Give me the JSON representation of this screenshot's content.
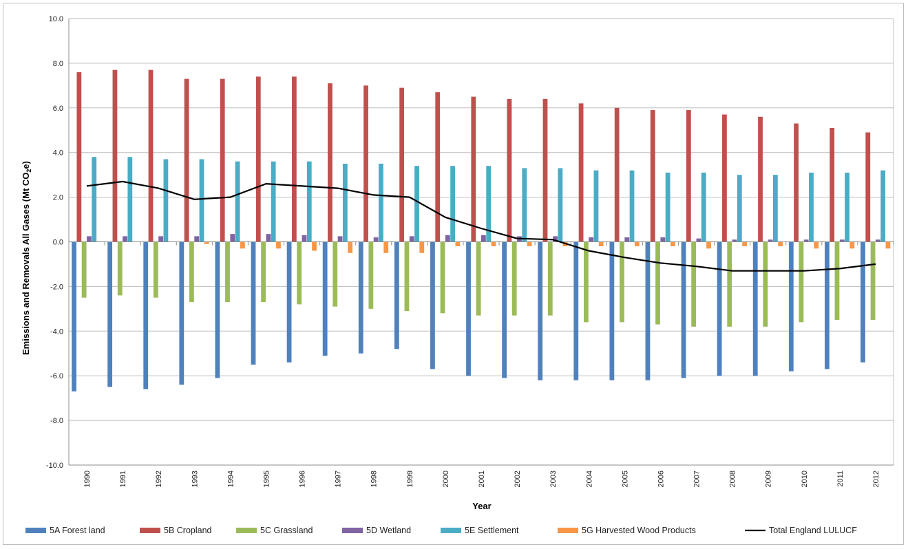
{
  "chart_data": {
    "type": "bar",
    "xlabel": "Year",
    "ylabel_main": "Emissions and Removals All Gases (Mt CO",
    "ylabel_sub": "2",
    "ylabel_end": "e)",
    "ylim": [
      -10,
      10
    ],
    "yticks": [
      "-10.0",
      "-8.0",
      "-6.0",
      "-4.0",
      "-2.0",
      "0.0",
      "2.0",
      "4.0",
      "6.0",
      "8.0",
      "10.0"
    ],
    "ytick_values": [
      -10,
      -8,
      -6,
      -4,
      -2,
      0,
      2,
      4,
      6,
      8,
      10
    ],
    "grid": true,
    "legend_position": "bottom",
    "categories": [
      "1990",
      "1991",
      "1992",
      "1993",
      "1994",
      "1995",
      "1996",
      "1997",
      "1998",
      "1999",
      "2000",
      "2001",
      "2002",
      "2003",
      "2004",
      "2005",
      "2006",
      "2007",
      "2008",
      "2009",
      "2010",
      "2011",
      "2012"
    ],
    "series": [
      {
        "name": "5A Forest land",
        "color": "#4F81BD",
        "kind": "bar",
        "values": [
          -6.7,
          -6.5,
          -6.6,
          -6.4,
          -6.1,
          -5.5,
          -5.4,
          -5.1,
          -5.0,
          -4.8,
          -5.7,
          -6.0,
          -6.1,
          -6.2,
          -6.2,
          -6.2,
          -6.2,
          -6.1,
          -6.0,
          -6.0,
          -5.8,
          -5.7,
          -5.4
        ]
      },
      {
        "name": "5B Cropland",
        "color": "#C0504D",
        "kind": "bar",
        "values": [
          7.6,
          7.7,
          7.7,
          7.3,
          7.3,
          7.4,
          7.4,
          7.1,
          7.0,
          6.9,
          6.7,
          6.5,
          6.4,
          6.4,
          6.2,
          6.0,
          5.9,
          5.9,
          5.7,
          5.6,
          5.3,
          5.1,
          4.9
        ]
      },
      {
        "name": "5C Grassland",
        "color": "#9BBB59",
        "kind": "bar",
        "values": [
          -2.5,
          -2.4,
          -2.5,
          -2.7,
          -2.7,
          -2.7,
          -2.8,
          -2.9,
          -3.0,
          -3.1,
          -3.2,
          -3.3,
          -3.3,
          -3.3,
          -3.6,
          -3.6,
          -3.7,
          -3.8,
          -3.8,
          -3.8,
          -3.6,
          -3.5,
          -3.5
        ]
      },
      {
        "name": "5D Wetland",
        "color": "#8064A2",
        "kind": "bar",
        "values": [
          0.25,
          0.25,
          0.25,
          0.25,
          0.35,
          0.35,
          0.3,
          0.25,
          0.2,
          0.25,
          0.3,
          0.3,
          0.25,
          0.25,
          0.2,
          0.2,
          0.2,
          0.15,
          0.1,
          0.1,
          0.1,
          0.1,
          0.1
        ]
      },
      {
        "name": "5E Settlement",
        "color": "#4BACC6",
        "kind": "bar",
        "values": [
          3.8,
          3.8,
          3.7,
          3.7,
          3.6,
          3.6,
          3.6,
          3.5,
          3.5,
          3.4,
          3.4,
          3.4,
          3.3,
          3.3,
          3.2,
          3.2,
          3.1,
          3.1,
          3.0,
          3.0,
          3.1,
          3.1,
          3.2
        ]
      },
      {
        "name": "5G Harvested Wood Products",
        "color": "#F79646",
        "kind": "bar",
        "values": [
          0.0,
          0.0,
          0.0,
          -0.1,
          -0.3,
          -0.3,
          -0.4,
          -0.5,
          -0.5,
          -0.5,
          -0.2,
          -0.2,
          -0.2,
          -0.2,
          -0.2,
          -0.2,
          -0.2,
          -0.3,
          -0.2,
          -0.2,
          -0.3,
          -0.3,
          -0.3
        ]
      },
      {
        "name": "Total England LULUCF",
        "color": "#000000",
        "kind": "line",
        "values": [
          2.5,
          2.7,
          2.4,
          1.9,
          2.0,
          2.6,
          2.5,
          2.4,
          2.1,
          2.0,
          1.1,
          0.6,
          0.15,
          0.1,
          -0.4,
          -0.7,
          -0.95,
          -1.1,
          -1.3,
          -1.3,
          -1.3,
          -1.2,
          -1.0
        ]
      }
    ]
  }
}
